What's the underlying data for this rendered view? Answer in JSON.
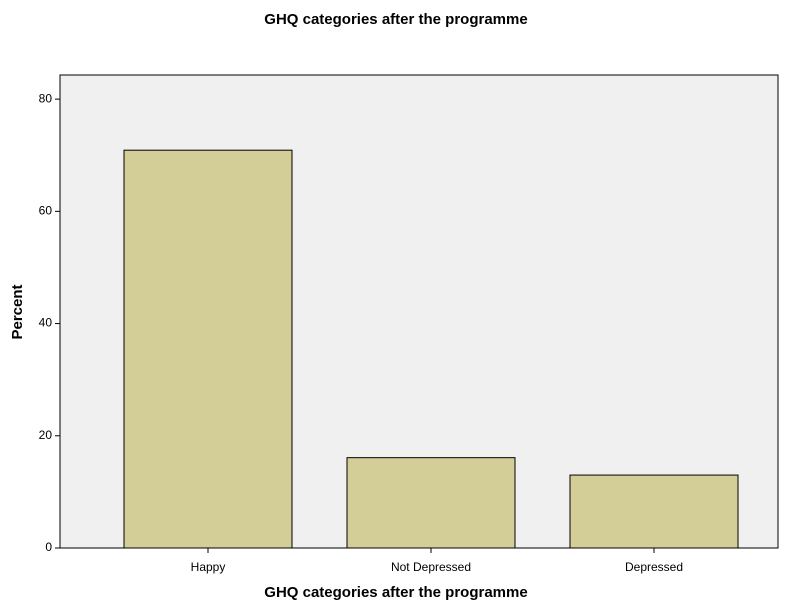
{
  "chart_data": {
    "type": "bar",
    "title": "GHQ categories after the programme",
    "x_label": "GHQ categories after the programme",
    "y_label": "Percent",
    "categories": [
      "Happy",
      "Not Depressed",
      "Depressed"
    ],
    "values": [
      70.9,
      16.1,
      13.0
    ],
    "color": "#d3ce98",
    "ylim": [
      0,
      84.3
    ],
    "yticks": [
      0,
      20,
      40,
      60,
      80
    ],
    "grid": false
  }
}
